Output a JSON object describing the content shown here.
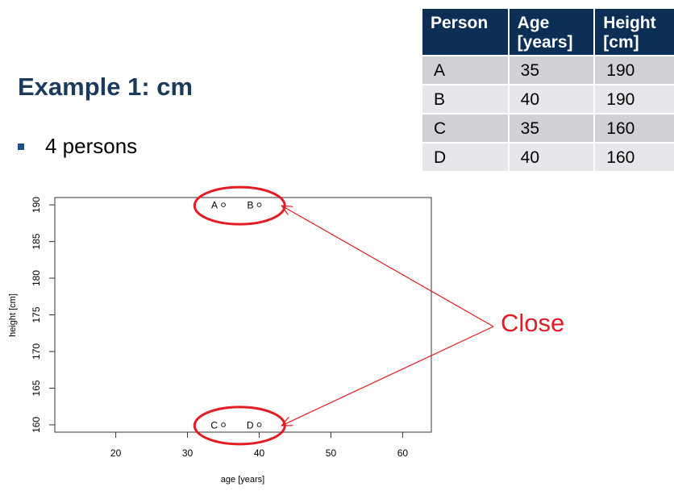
{
  "slide": {
    "title": "Example 1: cm",
    "bullet": "4 persons"
  },
  "table": {
    "headers": [
      {
        "line1": "Person",
        "line2": ""
      },
      {
        "line1": "Age",
        "line2": "[years]"
      },
      {
        "line1": "Height",
        "line2": "[cm]"
      }
    ],
    "rows": [
      [
        "A",
        "35",
        "190"
      ],
      [
        "B",
        "40",
        "190"
      ],
      [
        "C",
        "35",
        "160"
      ],
      [
        "D",
        "40",
        "160"
      ]
    ]
  },
  "annotation": {
    "text": "Close",
    "color": "#e31b23"
  },
  "chart_data": {
    "type": "scatter",
    "title": "",
    "xlabel": "age [years]",
    "ylabel": "height [cm]",
    "xlim": [
      11.5,
      64
    ],
    "ylim": [
      159,
      191
    ],
    "xticks": [
      20,
      30,
      40,
      50,
      60
    ],
    "yticks": [
      160,
      165,
      170,
      175,
      180,
      185,
      190
    ],
    "grid": false,
    "points": [
      {
        "label": "A",
        "x": 35,
        "y": 190
      },
      {
        "label": "B",
        "x": 40,
        "y": 190
      },
      {
        "label": "C",
        "x": 35,
        "y": 160
      },
      {
        "label": "D",
        "x": 40,
        "y": 160
      }
    ],
    "highlight_groups": [
      [
        0,
        1
      ],
      [
        2,
        3
      ]
    ]
  }
}
